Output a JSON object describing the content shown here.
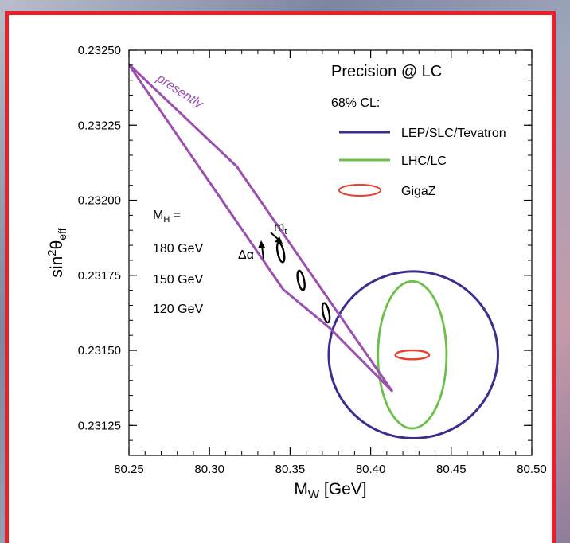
{
  "chart_data": {
    "type": "line",
    "title": "",
    "xlabel": "M",
    "xlabel_sub": "W",
    "xlabel_unit": " [GeV]",
    "ylabel": "sin",
    "ylabel_sup": "2",
    "ylabel_theta": "θ",
    "ylabel_sub": "eff",
    "xlim": [
      80.25,
      80.5
    ],
    "ylim": [
      0.23115,
      0.2325
    ],
    "xticks": [
      "80.25",
      "80.30",
      "80.35",
      "80.40",
      "80.45",
      "80.50"
    ],
    "yticks": [
      "0.23125",
      "0.23150",
      "0.23175",
      "0.23200",
      "0.23225",
      "0.23250"
    ],
    "legend": {
      "title": "Precision @ LC",
      "subtitle": "68% CL:",
      "placement": "top-right",
      "entries": [
        {
          "name": "LEP/SLC/Tevatron",
          "color": "#3a2f8f",
          "style": "line"
        },
        {
          "name": "LHC/LC",
          "color": "#6cc04a",
          "style": "line"
        },
        {
          "name": "GigaZ",
          "color": "#e8402a",
          "style": "ellipse"
        }
      ]
    },
    "series": [
      {
        "color": "#9b4fb0",
        "x": [
          80.2495,
          80.3168,
          80.4132,
          80.3745,
          80.3457,
          80.2495
        ],
        "y": [
          0.232455,
          0.232113,
          0.231365,
          0.231575,
          0.231703,
          0.232455
        ]
      }
    ],
    "ellipses": [
      {
        "name": "LEP/SLC/Tevatron",
        "color": "#3a2f8f",
        "cx": 80.4265,
        "cy": 0.231485,
        "rx": 0.0525,
        "ry": 0.000278
      },
      {
        "name": "LHC/LC",
        "color": "#6cc04a",
        "cx": 80.4258,
        "cy": 0.231485,
        "rx": 0.0213,
        "ry": 0.000245
      },
      {
        "name": "GigaZ",
        "color": "#e8402a",
        "cx": 80.4258,
        "cy": 0.231485,
        "rx": 0.0105,
        "ry": 1.5e-05
      }
    ],
    "small_ellipses": [
      {
        "label": "180 GeV",
        "cx": 80.3442,
        "cy": 0.231826,
        "rx": 0.0019,
        "ry": 3.3e-05
      },
      {
        "label": "150 GeV",
        "cx": 80.3568,
        "cy": 0.231733,
        "rx": 0.0019,
        "ry": 3.3e-05
      },
      {
        "label": "120 GeV",
        "cx": 80.3723,
        "cy": 0.231625,
        "rx": 0.0019,
        "ry": 3.3e-05
      }
    ],
    "annotations": {
      "presently": "presently",
      "mh_label": "M",
      "mh_sub": "H",
      "mh_eq": " =",
      "mh_values": [
        "180 GeV",
        "150 GeV",
        "120 GeV"
      ],
      "mt_label": "m",
      "mt_sub": "t",
      "dalpha_label": "Δα"
    }
  }
}
